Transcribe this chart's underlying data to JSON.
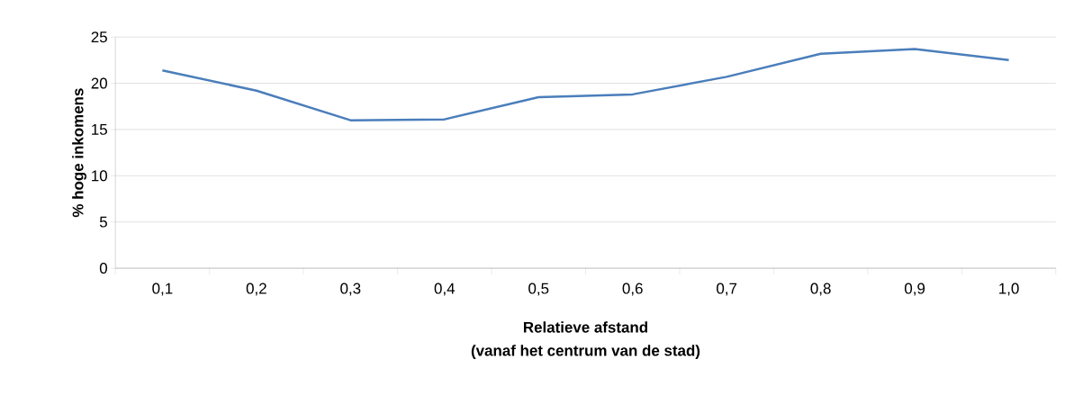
{
  "chart_data": {
    "type": "line",
    "xlabel": "Relatieve afstand\n(vanaf het centrum van de stad)",
    "ylabel": "% hoge inkomens",
    "categories": [
      "0,1",
      "0,2",
      "0,3",
      "0,4",
      "0,5",
      "0,6",
      "0,7",
      "0,8",
      "0,9",
      "1,0"
    ],
    "series": [
      {
        "color": "#4a7ebb",
        "values": [
          21.4,
          19.2,
          16.0,
          16.1,
          18.5,
          18.8,
          20.7,
          23.2,
          23.7,
          22.5
        ]
      }
    ],
    "ylim": [
      0,
      25
    ],
    "yticks": [
      0,
      5,
      10,
      15,
      20,
      25
    ],
    "grid": "y",
    "marker": "none",
    "line_style": "solid"
  }
}
